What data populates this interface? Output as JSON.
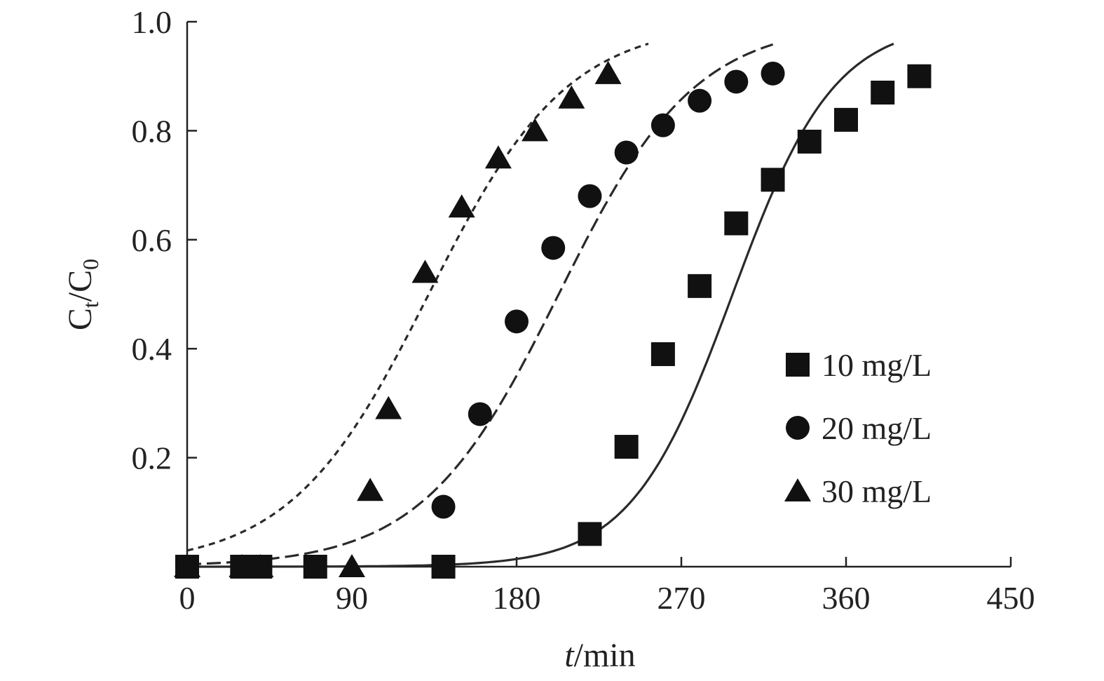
{
  "chart_data": {
    "type": "scatter",
    "xlabel_italic": "t",
    "xlabel_rest": "/min",
    "ylabel_main": "C",
    "ylabel_sub1": "t",
    "ylabel_sep": "/C",
    "ylabel_sub2": "0",
    "xlim": [
      0,
      450
    ],
    "ylim": [
      0,
      1.0
    ],
    "xticks": [
      0,
      90,
      180,
      270,
      360,
      450
    ],
    "xtick_labels": [
      "0",
      "90",
      "180",
      "270",
      "360",
      "450"
    ],
    "yticks": [
      0.2,
      0.4,
      0.6,
      0.8,
      1.0
    ],
    "ytick_labels": [
      "0.2",
      "0.4",
      "0.6",
      "0.8",
      "1.0"
    ],
    "grid": false,
    "legend_position": "right",
    "series": [
      {
        "name": "10 mg/L",
        "marker": "square",
        "line": "solid",
        "x": [
          0,
          30,
          40,
          70,
          140,
          220,
          240,
          260,
          280,
          300,
          320,
          340,
          360,
          380,
          400
        ],
        "y": [
          0,
          0,
          0,
          0,
          0,
          0.06,
          0.22,
          0.39,
          0.515,
          0.63,
          0.71,
          0.78,
          0.82,
          0.87,
          0.9
        ],
        "fit": {
          "a": 0.036,
          "x0": 298
        }
      },
      {
        "name": "20 mg/L",
        "marker": "circle",
        "line": "dashed",
        "x": [
          0,
          30,
          40,
          70,
          140,
          160,
          180,
          200,
          220,
          240,
          260,
          280,
          300,
          320
        ],
        "y": [
          0,
          0,
          0,
          0,
          0.11,
          0.28,
          0.45,
          0.585,
          0.68,
          0.76,
          0.81,
          0.855,
          0.89,
          0.905
        ],
        "fit": {
          "a": 0.0268,
          "x0": 203
        }
      },
      {
        "name": "30 mg/L",
        "marker": "triangle",
        "line": "dotted",
        "x": [
          0,
          30,
          40,
          90,
          100,
          110,
          130,
          150,
          170,
          190,
          210,
          230
        ],
        "y": [
          0,
          0,
          0,
          0,
          0.14,
          0.29,
          0.54,
          0.66,
          0.75,
          0.8,
          0.86,
          0.905
        ],
        "fit": {
          "a": 0.0264,
          "x0": 132
        }
      }
    ]
  }
}
